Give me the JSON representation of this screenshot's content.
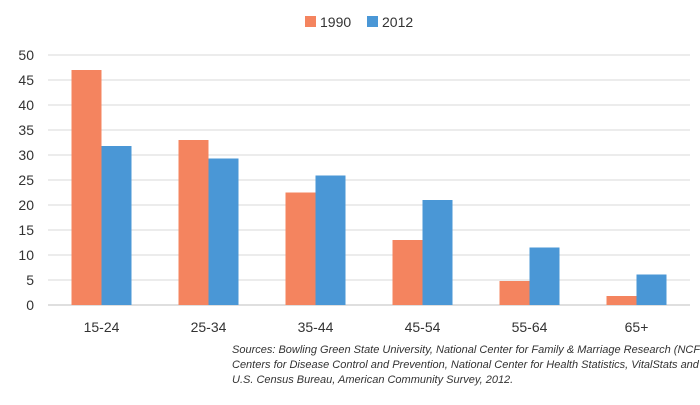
{
  "chart_data": {
    "type": "bar",
    "categories": [
      "15-24",
      "25-34",
      "35-44",
      "45-54",
      "55-64",
      "65+"
    ],
    "series": [
      {
        "name": "1990",
        "color": "#f4845f",
        "values": [
          47,
          33,
          22.5,
          13,
          4.8,
          1.8
        ]
      },
      {
        "name": "2012",
        "color": "#4a97d6",
        "values": [
          31.8,
          29.3,
          25.9,
          21,
          11.5,
          6.1
        ]
      }
    ],
    "ylim": [
      0,
      50
    ],
    "ytick_step": 5,
    "grid": true,
    "legend_position": "top-center",
    "title": "",
    "xlabel": "",
    "ylabel": ""
  },
  "sources": {
    "line1": "Sources: Bowling Green State University, National Center for Family & Marriage Research (NCFMR),",
    "line2": "Centers for Disease Control and Prevention, National Center for Health Statistics, VitalStats and",
    "line3": "U.S. Census Bureau, American Community Survey, 2012."
  }
}
